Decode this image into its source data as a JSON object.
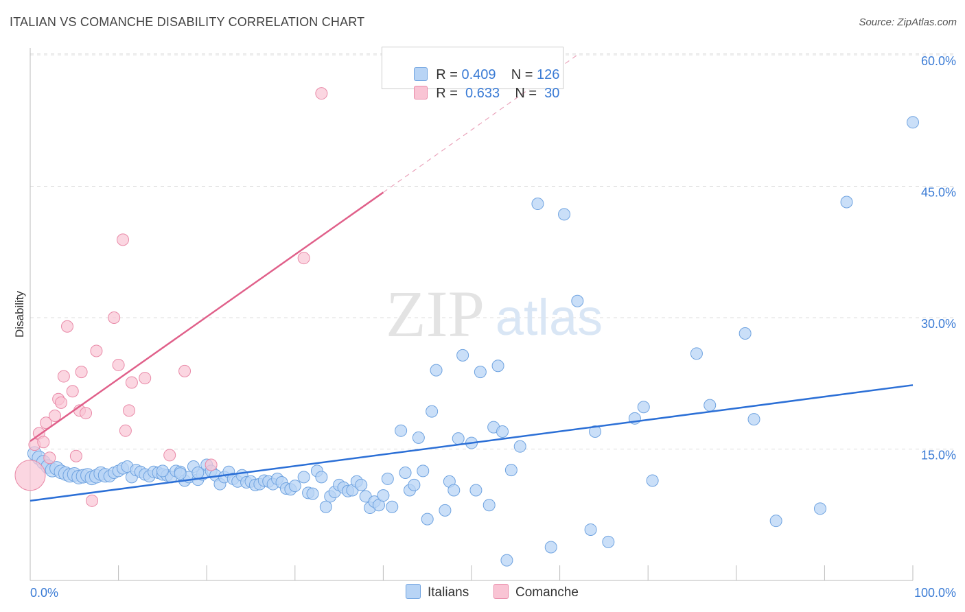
{
  "header": {
    "title": "ITALIAN VS COMANCHE DISABILITY CORRELATION CHART",
    "source": "Source: ZipAtlas.com"
  },
  "watermark": {
    "zip": "ZIP",
    "atlas": "atlas"
  },
  "legend": {
    "italians": {
      "r_label": "R =",
      "r_value": "0.409",
      "n_label": "N =",
      "n_value": "126"
    },
    "comanche": {
      "r_label": "R =",
      "r_value": "0.633",
      "n_label": "N =",
      "n_value": "30"
    }
  },
  "bottom_legend": {
    "italians": "Italians",
    "comanche": "Comanche"
  },
  "colors": {
    "italians_fill": "#b8d4f5",
    "italians_stroke": "#6fa3e0",
    "italians_line": "#2b6fd6",
    "comanche_fill": "#f9c4d4",
    "comanche_stroke": "#e98aa8",
    "comanche_line": "#e0608a",
    "axis_label": "#3a7bd5"
  },
  "chart_data": {
    "type": "scatter",
    "title": "ITALIAN VS COMANCHE DISABILITY CORRELATION CHART",
    "xlabel": "",
    "ylabel": "Disability",
    "xlim": [
      0,
      100
    ],
    "ylim": [
      0,
      62
    ],
    "x_tick_labels": {
      "min": "0.0%",
      "max": "100.0%"
    },
    "y_ticks": [
      15,
      30,
      45,
      60
    ],
    "y_tick_labels": [
      "15.0%",
      "30.0%",
      "45.0%",
      "60.0%"
    ],
    "grid": true,
    "legend_position": "top-center",
    "series": [
      {
        "name": "Italians",
        "r": 0.409,
        "n": 126,
        "trend": {
          "x0": 0,
          "y0": 9.1,
          "x1": 100,
          "y1": 22.3
        },
        "points": [
          [
            0.5,
            14.5
          ],
          [
            1,
            14
          ],
          [
            1.5,
            13.5
          ],
          [
            2,
            13
          ],
          [
            2.5,
            12.6
          ],
          [
            3,
            12.8
          ],
          [
            3.5,
            12.4
          ],
          [
            4,
            12.2
          ],
          [
            4.5,
            12.0
          ],
          [
            5,
            12.1
          ],
          [
            5.5,
            11.8
          ],
          [
            6,
            11.9
          ],
          [
            6.5,
            12.0
          ],
          [
            7,
            11.7
          ],
          [
            7.5,
            11.9
          ],
          [
            8,
            12.2
          ],
          [
            8.5,
            12.0
          ],
          [
            9,
            11.9
          ],
          [
            9.5,
            12.3
          ],
          [
            10,
            12.5
          ],
          [
            10.5,
            12.8
          ],
          [
            11,
            13.0
          ],
          [
            11.5,
            11.8
          ],
          [
            12,
            12.6
          ],
          [
            12.5,
            12.4
          ],
          [
            13,
            12.1
          ],
          [
            13.5,
            11.9
          ],
          [
            14,
            12.4
          ],
          [
            14.5,
            12.3
          ],
          [
            15,
            12.1
          ],
          [
            15.5,
            12.0
          ],
          [
            16,
            11.8
          ],
          [
            16.5,
            12.5
          ],
          [
            17,
            12.4
          ],
          [
            17.5,
            11.4
          ],
          [
            18,
            11.8
          ],
          [
            18.5,
            13.0
          ],
          [
            19,
            11.5
          ],
          [
            19.5,
            12.1
          ],
          [
            20,
            13.2
          ],
          [
            20.5,
            12.5
          ],
          [
            21,
            12.0
          ],
          [
            21.5,
            11.0
          ],
          [
            22,
            11.8
          ],
          [
            22.5,
            12.4
          ],
          [
            23,
            11.6
          ],
          [
            23.5,
            11.3
          ],
          [
            24,
            12.0
          ],
          [
            24.5,
            11.2
          ],
          [
            25,
            11.3
          ],
          [
            25.5,
            10.9
          ],
          [
            26,
            11.0
          ],
          [
            26.5,
            11.4
          ],
          [
            27,
            11.3
          ],
          [
            27.5,
            11.0
          ],
          [
            28,
            11.6
          ],
          [
            28.5,
            11.2
          ],
          [
            29,
            10.5
          ],
          [
            29.5,
            10.4
          ],
          [
            30,
            10.8
          ],
          [
            31,
            11.8
          ],
          [
            31.5,
            10.0
          ],
          [
            32,
            9.9
          ],
          [
            32.5,
            12.5
          ],
          [
            33,
            11.8
          ],
          [
            33.5,
            8.4
          ],
          [
            34,
            9.6
          ],
          [
            34.5,
            10.1
          ],
          [
            35,
            10.9
          ],
          [
            35.5,
            10.6
          ],
          [
            36,
            10.2
          ],
          [
            36.5,
            10.3
          ],
          [
            37,
            11.3
          ],
          [
            37.5,
            10.9
          ],
          [
            38,
            9.6
          ],
          [
            38.5,
            8.3
          ],
          [
            39,
            9.0
          ],
          [
            39.5,
            8.6
          ],
          [
            40,
            9.7
          ],
          [
            40.5,
            11.6
          ],
          [
            41,
            8.4
          ],
          [
            42,
            17.1
          ],
          [
            42.5,
            12.3
          ],
          [
            43,
            10.3
          ],
          [
            43.5,
            10.9
          ],
          [
            44,
            16.3
          ],
          [
            44.5,
            12.5
          ],
          [
            45,
            7.0
          ],
          [
            45.5,
            19.3
          ],
          [
            46,
            24.0
          ],
          [
            47,
            8.0
          ],
          [
            47.5,
            11.3
          ],
          [
            48,
            10.3
          ],
          [
            48.5,
            16.2
          ],
          [
            49,
            25.7
          ],
          [
            50,
            15.7
          ],
          [
            50.5,
            10.3
          ],
          [
            51,
            23.8
          ],
          [
            52,
            8.6
          ],
          [
            52.5,
            17.5
          ],
          [
            53,
            24.5
          ],
          [
            53.5,
            17.0
          ],
          [
            54,
            2.3
          ],
          [
            54.5,
            12.6
          ],
          [
            55.5,
            15.3
          ],
          [
            57.5,
            43.0
          ],
          [
            59,
            3.8
          ],
          [
            60.5,
            41.8
          ],
          [
            62,
            31.9
          ],
          [
            63.5,
            5.8
          ],
          [
            64,
            17.0
          ],
          [
            65.5,
            4.4
          ],
          [
            68.5,
            18.5
          ],
          [
            69.5,
            19.8
          ],
          [
            70.5,
            11.4
          ],
          [
            75.5,
            25.9
          ],
          [
            77,
            20.0
          ],
          [
            81,
            28.2
          ],
          [
            82,
            18.4
          ],
          [
            84.5,
            6.8
          ],
          [
            89.5,
            8.2
          ],
          [
            92.5,
            43.2
          ],
          [
            100,
            52.3
          ],
          [
            15,
            12.5
          ],
          [
            17,
            12.2
          ],
          [
            19,
            12.3
          ]
        ]
      },
      {
        "name": "Comanche",
        "r": 0.633,
        "n": 30,
        "trend": {
          "x0": 0,
          "y0": 15.9,
          "x1": 40,
          "y1": 44.3
        },
        "trend_extension": {
          "x0": 40,
          "y0": 44.3,
          "x1": 62,
          "y1": 60.0
        },
        "points": [
          [
            0,
            12.0
          ],
          [
            0.5,
            15.5
          ],
          [
            1,
            16.8
          ],
          [
            1.5,
            15.8
          ],
          [
            1.8,
            18.0
          ],
          [
            2.2,
            14.0
          ],
          [
            2.8,
            18.8
          ],
          [
            3.2,
            20.7
          ],
          [
            3.5,
            20.3
          ],
          [
            3.8,
            23.3
          ],
          [
            4.2,
            29.0
          ],
          [
            4.8,
            21.6
          ],
          [
            5.2,
            14.2
          ],
          [
            5.6,
            19.4
          ],
          [
            5.8,
            23.8
          ],
          [
            6.3,
            19.1
          ],
          [
            7,
            9.1
          ],
          [
            7.5,
            26.2
          ],
          [
            9.5,
            30.0
          ],
          [
            10,
            24.6
          ],
          [
            10.5,
            38.9
          ],
          [
            10.8,
            17.1
          ],
          [
            11.2,
            19.4
          ],
          [
            11.5,
            22.6
          ],
          [
            13,
            23.1
          ],
          [
            15.8,
            14.3
          ],
          [
            17.5,
            23.9
          ],
          [
            20.5,
            13.2
          ],
          [
            31,
            36.8
          ],
          [
            33,
            55.6
          ]
        ]
      }
    ]
  }
}
